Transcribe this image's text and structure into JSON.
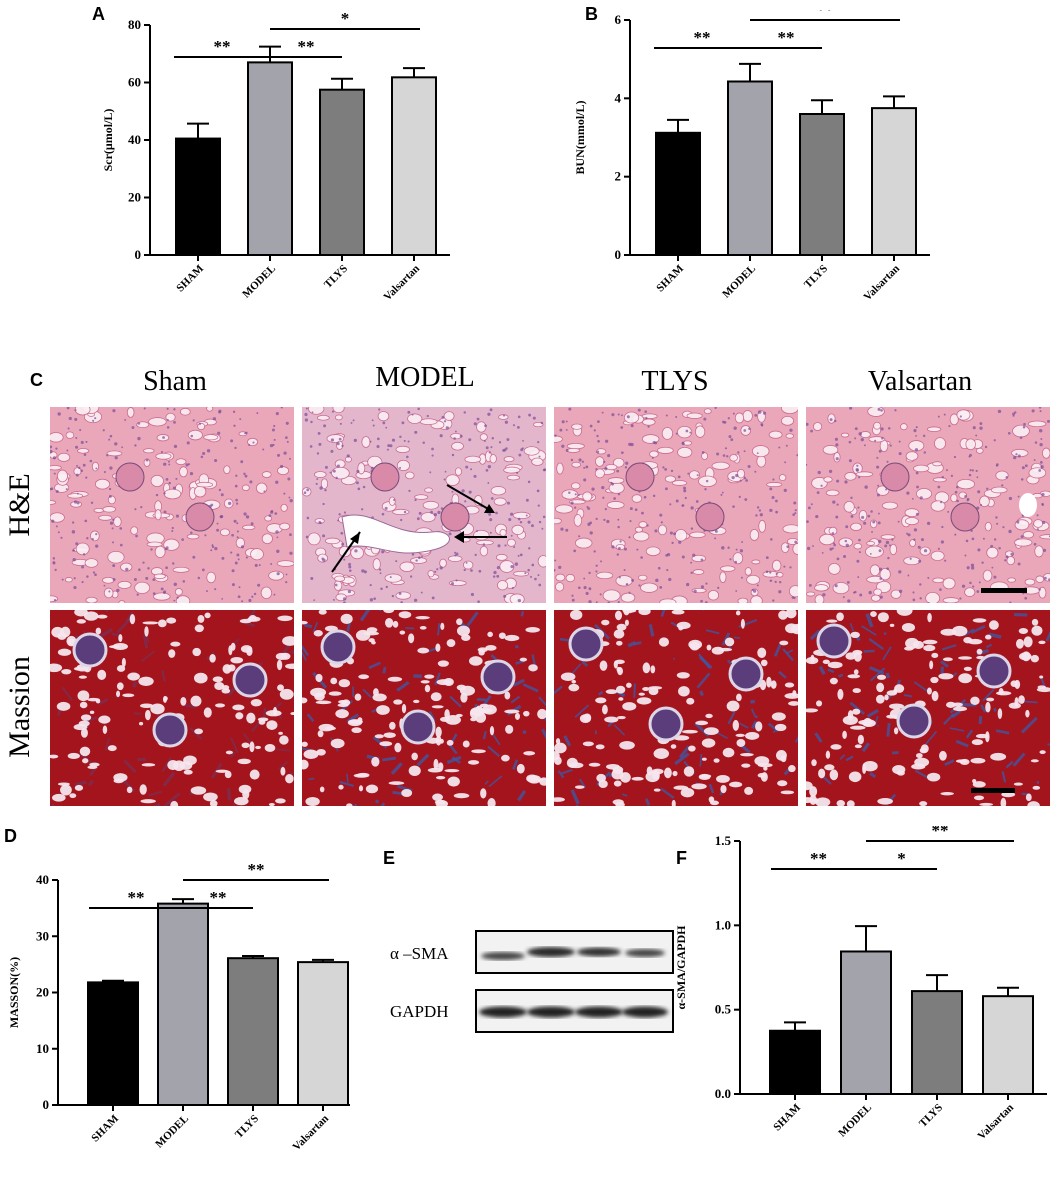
{
  "panels": {
    "A": "A",
    "B": "B",
    "C": "C",
    "D": "D",
    "E": "E",
    "F": "F"
  },
  "histology": {
    "columns": [
      "Sham",
      "MODEL",
      "TLYS",
      "Valsartan"
    ],
    "rows": [
      "H&E",
      "Massion"
    ],
    "colors": {
      "he_base": "#e9a7b9",
      "he_dark": "#c9648a",
      "he_nuclei": "#7a4a9a",
      "masson_base": "#a3141d",
      "masson_blue": "#3b5aa8",
      "masson_light": "#f5e6ee"
    }
  },
  "blot": {
    "labels": [
      "α –SMA",
      "GAPDH"
    ]
  },
  "bar_colors": [
    "#000000",
    "#a3a3ab",
    "#7d7d7d",
    "#d6d6d6"
  ],
  "chart_data": [
    {
      "panel": "A",
      "type": "bar",
      "categories": [
        "SHAM",
        "MODEL",
        "TLYS",
        "Valsartan"
      ],
      "values": [
        40.5,
        67,
        57.5,
        61.8
      ],
      "errors": [
        5.2,
        5.5,
        3.8,
        3.2
      ],
      "ylabel": "Scr(μmol/L)",
      "ylim": [
        0,
        80
      ],
      "yticks": [
        0,
        20,
        40,
        60,
        80
      ],
      "sig": [
        {
          "from": 0,
          "to": 1,
          "label": "**",
          "level": 0
        },
        {
          "from": 1,
          "to": 2,
          "label": "**",
          "level": 0
        },
        {
          "from": 1,
          "to": 3,
          "label": "*",
          "level": 1
        }
      ]
    },
    {
      "panel": "B",
      "type": "bar",
      "categories": [
        "SHAM",
        "MODEL",
        "TLYS",
        "Valsartan"
      ],
      "values": [
        3.12,
        4.43,
        3.6,
        3.75
      ],
      "errors": [
        0.33,
        0.45,
        0.35,
        0.3
      ],
      "ylabel": "BUN(mmol/L)",
      "ylim": [
        0,
        6
      ],
      "yticks": [
        0,
        2,
        4,
        6
      ],
      "sig": [
        {
          "from": 0,
          "to": 1,
          "label": "**",
          "level": 0
        },
        {
          "from": 1,
          "to": 2,
          "label": "**",
          "level": 0
        },
        {
          "from": 1,
          "to": 3,
          "label": "**",
          "level": 1
        }
      ]
    },
    {
      "panel": "D",
      "type": "bar",
      "categories": [
        "SHAM",
        "MODEL",
        "TLYS",
        "Valsartan"
      ],
      "values": [
        21.8,
        35.8,
        26.1,
        25.4
      ],
      "errors": [
        0.3,
        0.8,
        0.4,
        0.4
      ],
      "ylabel": "MASSON(%)",
      "ylim": [
        0,
        40
      ],
      "yticks": [
        0,
        10,
        20,
        30,
        40
      ],
      "sig": [
        {
          "from": 0,
          "to": 1,
          "label": "**",
          "level": 0
        },
        {
          "from": 1,
          "to": 2,
          "label": "**",
          "level": 0
        },
        {
          "from": 1,
          "to": 3,
          "label": "**",
          "level": 1
        }
      ]
    },
    {
      "panel": "F",
      "type": "bar",
      "categories": [
        "SHAM",
        "MODEL",
        "TLYS",
        "Valsartan"
      ],
      "values": [
        0.375,
        0.845,
        0.61,
        0.58
      ],
      "errors": [
        0.05,
        0.15,
        0.095,
        0.05
      ],
      "ylabel": "α-SMA/GAPDH",
      "ylim": [
        0,
        1.5
      ],
      "yticks": [
        0.0,
        0.5,
        1.0,
        1.5
      ],
      "ytick_labels": [
        "0.0",
        "0.5",
        "1.0",
        "1.5"
      ],
      "sig": [
        {
          "from": 0,
          "to": 1,
          "label": "**",
          "level": 0
        },
        {
          "from": 1,
          "to": 2,
          "label": "*",
          "level": 0
        },
        {
          "from": 1,
          "to": 3,
          "label": "**",
          "level": 1
        }
      ]
    }
  ]
}
